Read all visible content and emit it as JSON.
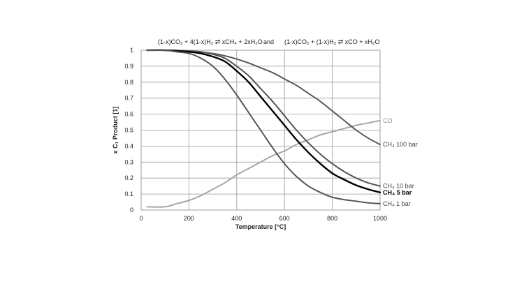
{
  "chart_data": {
    "type": "line",
    "title_parts": {
      "eq1": "(1-x)CO₂ + 4(1-x)H₂ ⇄ xCH₄ + 2xH₂O",
      "connector": "and",
      "eq2": "(1-x)CO₂ + (1-x)H₂ ⇄ xCO + xH₂O"
    },
    "xlabel": "Temperature [°C]",
    "ylabel": "x C₁ Product [1]",
    "xlim": [
      0,
      1000
    ],
    "ylim": [
      0,
      1
    ],
    "x_ticks": [
      "0",
      "200",
      "400",
      "600",
      "800",
      "1000"
    ],
    "y_ticks": [
      "0",
      "0.1",
      "0.2",
      "0.3",
      "0.4",
      "0.5",
      "0.6",
      "0.7",
      "0.8",
      "0.9",
      "1"
    ],
    "grid": true,
    "series": [
      {
        "name": "CO",
        "color": "#a6a6a6",
        "bold": false,
        "x": [
          25,
          100,
          150,
          200,
          250,
          300,
          350,
          400,
          450,
          500,
          550,
          600,
          650,
          700,
          750,
          800,
          850,
          900,
          950,
          1000
        ],
        "y": [
          0.02,
          0.02,
          0.04,
          0.06,
          0.09,
          0.13,
          0.17,
          0.22,
          0.26,
          0.3,
          0.34,
          0.37,
          0.41,
          0.44,
          0.47,
          0.49,
          0.51,
          0.53,
          0.545,
          0.56
        ]
      },
      {
        "name": "CH₄ 100 bar",
        "color": "#5a5a5a",
        "bold": false,
        "x": [
          25,
          100,
          200,
          300,
          350,
          400,
          450,
          500,
          550,
          600,
          650,
          700,
          750,
          800,
          850,
          900,
          950,
          1000
        ],
        "y": [
          1.0,
          1.0,
          0.995,
          0.98,
          0.965,
          0.945,
          0.92,
          0.89,
          0.86,
          0.82,
          0.78,
          0.73,
          0.68,
          0.62,
          0.56,
          0.5,
          0.45,
          0.41
        ]
      },
      {
        "name": "CH₄ 10 bar",
        "color": "#555555",
        "bold": false,
        "x": [
          25,
          100,
          200,
          250,
          300,
          350,
          400,
          450,
          500,
          550,
          600,
          650,
          700,
          750,
          800,
          850,
          900,
          950,
          1000
        ],
        "y": [
          1.0,
          1.0,
          0.995,
          0.99,
          0.975,
          0.95,
          0.9,
          0.84,
          0.76,
          0.68,
          0.59,
          0.5,
          0.42,
          0.35,
          0.29,
          0.24,
          0.2,
          0.17,
          0.15
        ]
      },
      {
        "name": "CH₄ 5 bar",
        "color": "#000000",
        "bold": true,
        "x": [
          25,
          100,
          200,
          250,
          300,
          350,
          400,
          450,
          500,
          550,
          600,
          650,
          700,
          750,
          800,
          850,
          900,
          950,
          1000
        ],
        "y": [
          1.0,
          1.0,
          0.99,
          0.98,
          0.96,
          0.93,
          0.87,
          0.8,
          0.71,
          0.62,
          0.53,
          0.44,
          0.36,
          0.29,
          0.23,
          0.19,
          0.155,
          0.13,
          0.11
        ]
      },
      {
        "name": "CH₄ 1 bar",
        "color": "#555555",
        "bold": false,
        "x": [
          25,
          100,
          150,
          200,
          250,
          300,
          350,
          400,
          450,
          500,
          550,
          600,
          650,
          700,
          750,
          800,
          850,
          900,
          950,
          1000
        ],
        "y": [
          1.0,
          1.0,
          0.99,
          0.98,
          0.95,
          0.9,
          0.82,
          0.72,
          0.61,
          0.5,
          0.39,
          0.29,
          0.21,
          0.15,
          0.11,
          0.08,
          0.065,
          0.055,
          0.045,
          0.04
        ]
      }
    ]
  }
}
